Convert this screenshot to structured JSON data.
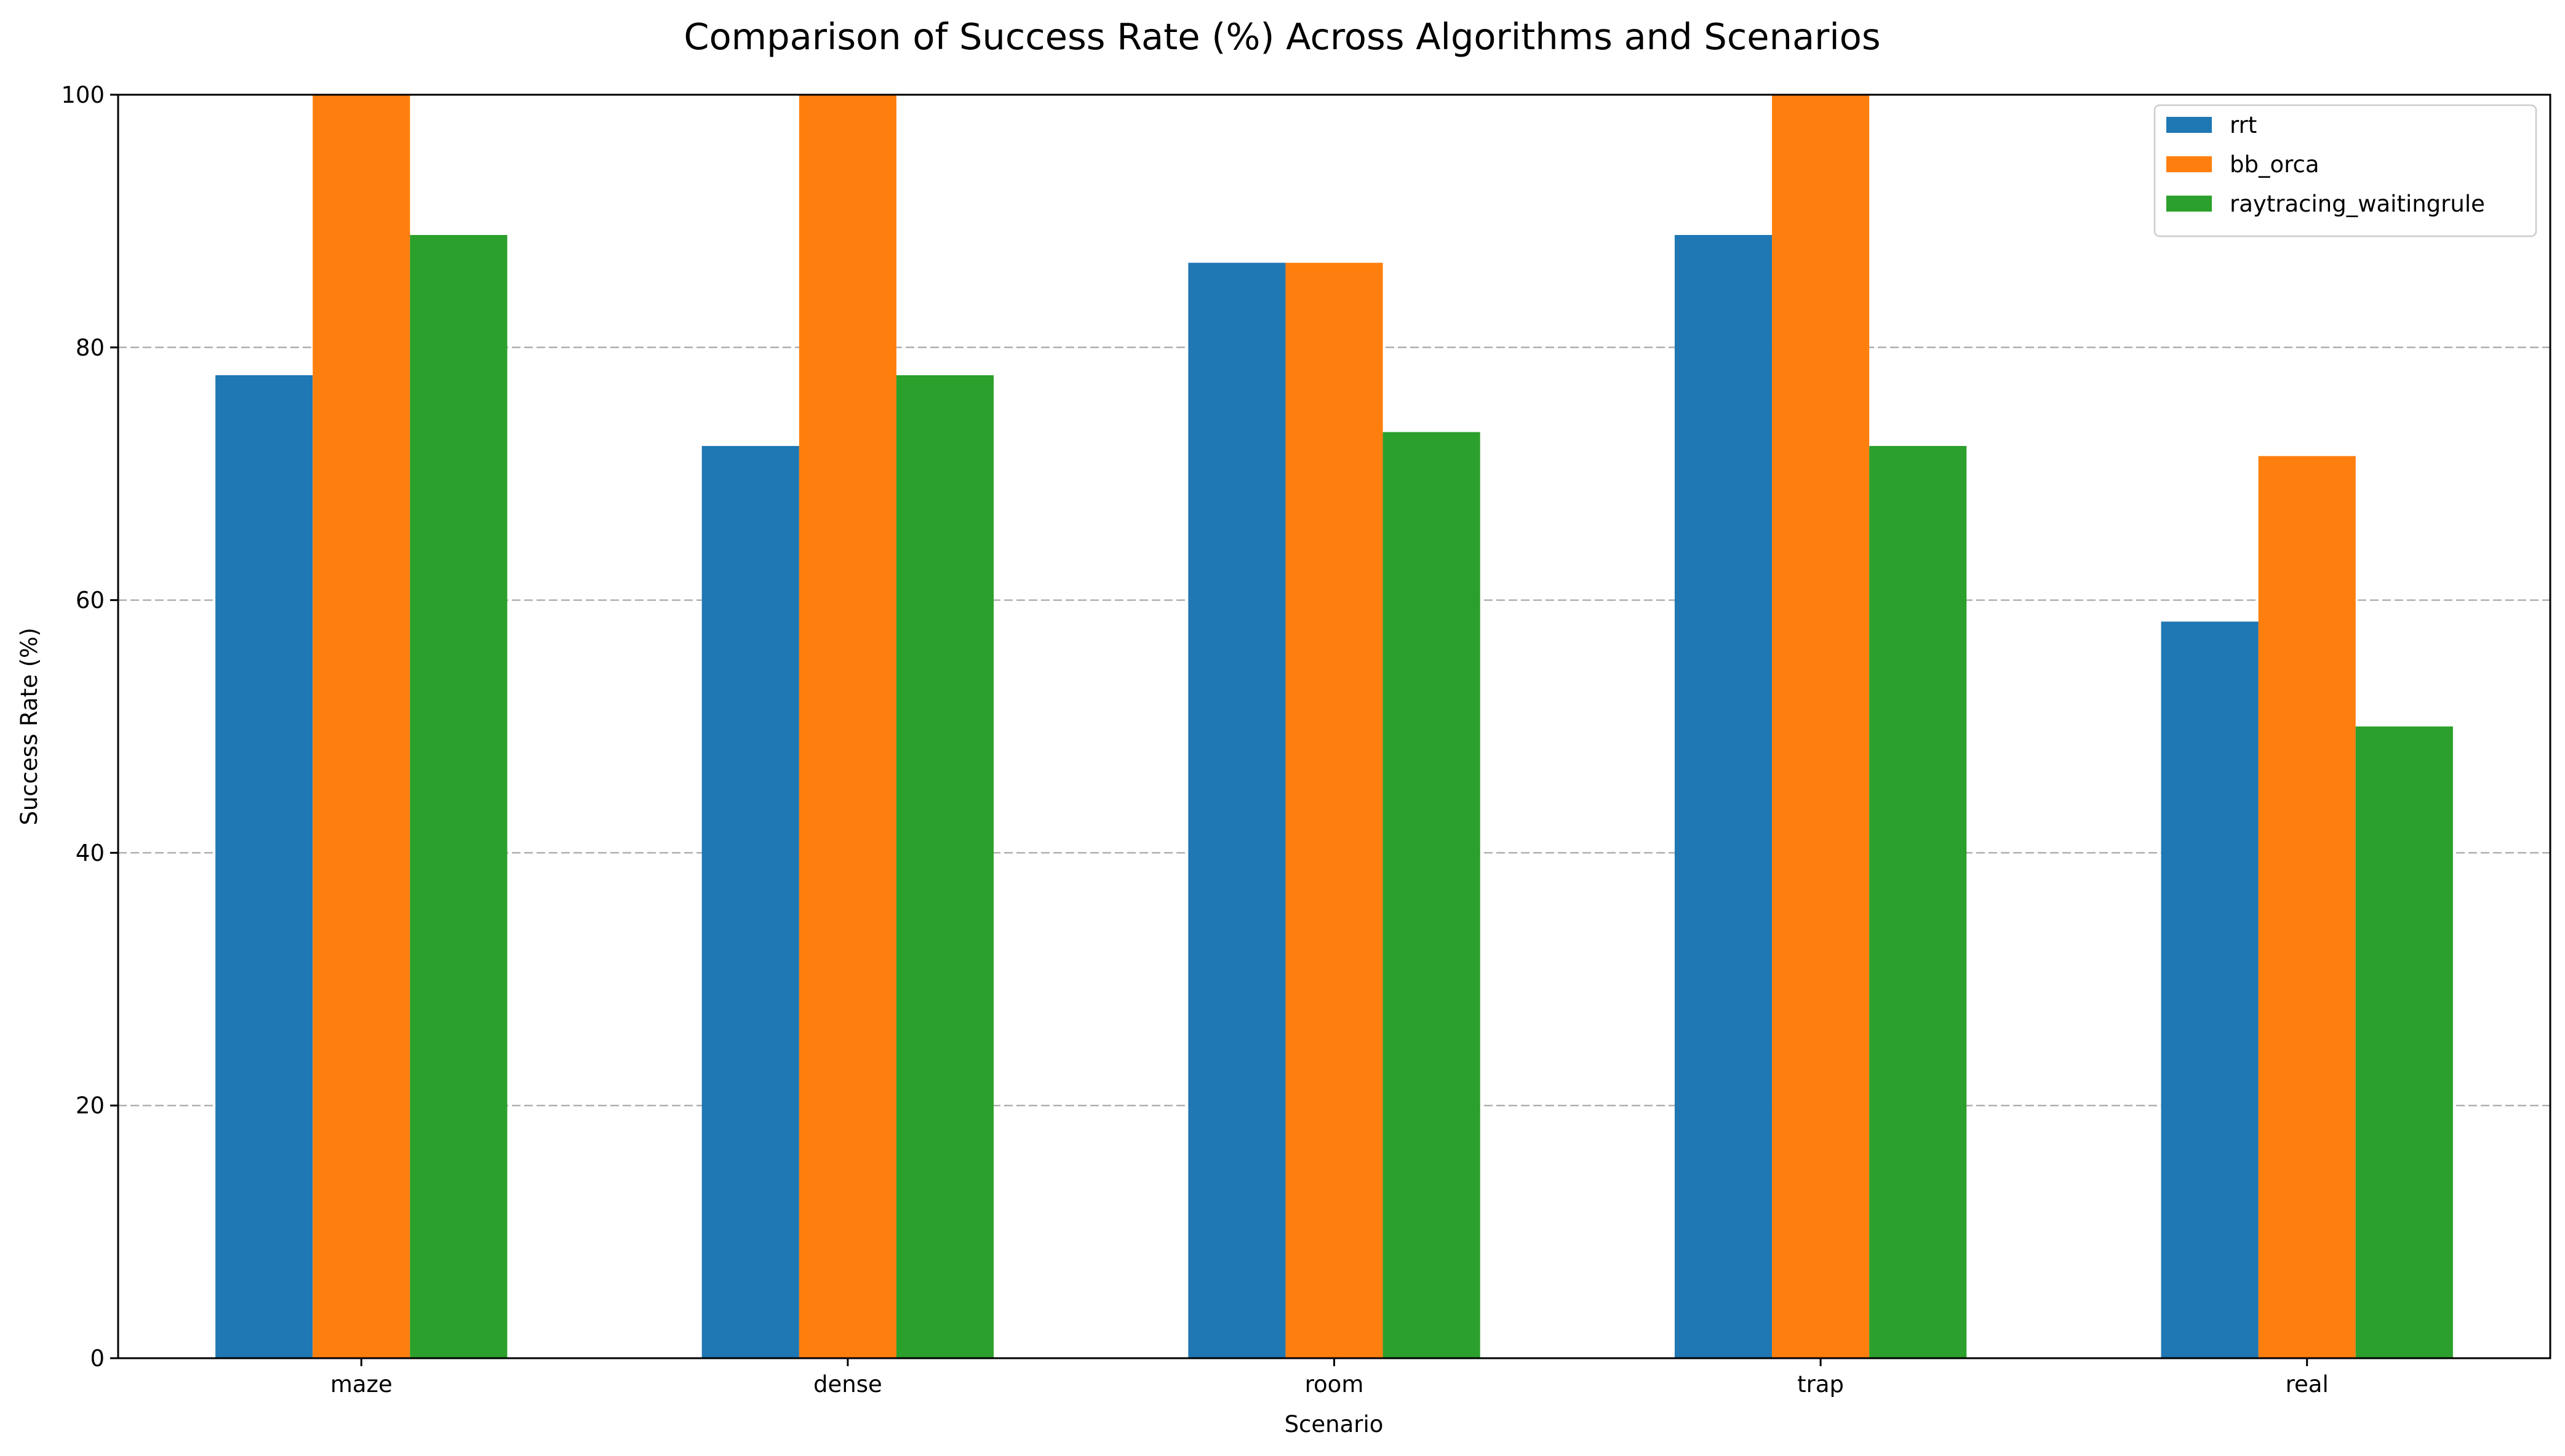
{
  "chart_data": {
    "type": "bar",
    "title": "Comparison of Success Rate (%) Across Algorithms and Scenarios",
    "xlabel": "Scenario",
    "ylabel": "Success Rate (%)",
    "categories": [
      "maze",
      "dense",
      "room",
      "trap",
      "real"
    ],
    "ylim": [
      0,
      100
    ],
    "yticks": [
      0,
      20,
      40,
      60,
      80,
      100
    ],
    "grid": "y-dashed",
    "legend_position": "top-right",
    "series": [
      {
        "name": "rrt",
        "color": "#1f77b4",
        "values": [
          77.8,
          72.2,
          86.7,
          88.9,
          58.3
        ]
      },
      {
        "name": "bb_orca",
        "color": "#ff7f0e",
        "values": [
          100,
          100,
          86.7,
          100,
          71.4
        ]
      },
      {
        "name": "raytracing_waitingrule",
        "color": "#2ca02c",
        "values": [
          88.9,
          77.8,
          73.3,
          72.2,
          50.0
        ]
      }
    ]
  }
}
